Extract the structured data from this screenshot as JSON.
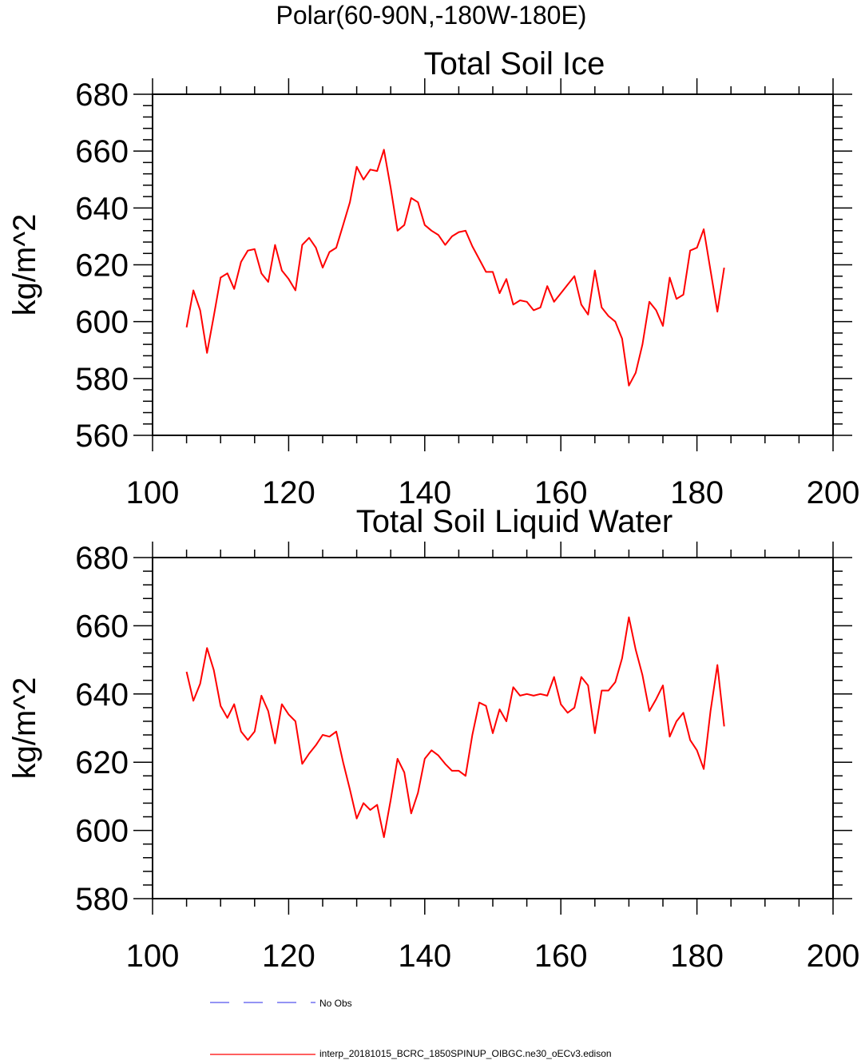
{
  "page_title": "Polar(60-90N,-180W-180E)",
  "legend": {
    "items": [
      {
        "label": "No Obs",
        "color": "#5555ee",
        "style": "dashed"
      },
      {
        "label": "interp_20181015_BCRC_1850SPINUP_OIBGC.ne30_oECv3.edison",
        "color": "#ff0000",
        "style": "solid"
      }
    ]
  },
  "chart_data": [
    {
      "type": "line",
      "title": "Total Soil Ice",
      "xlabel": "",
      "ylabel": "kg/m^2",
      "xlim": [
        100,
        200
      ],
      "ylim": [
        560,
        680
      ],
      "x_ticks": [
        100,
        120,
        140,
        160,
        180,
        200
      ],
      "y_ticks": [
        560,
        580,
        600,
        620,
        640,
        660,
        680
      ],
      "grid": false,
      "series": [
        {
          "color": "#ff0000",
          "x": [
            105,
            106,
            107,
            108,
            109,
            110,
            111,
            112,
            113,
            114,
            115,
            116,
            117,
            118,
            119,
            120,
            121,
            122,
            123,
            124,
            125,
            126,
            127,
            128,
            129,
            130,
            131,
            132,
            133,
            134,
            135,
            136,
            137,
            138,
            139,
            140,
            141,
            142,
            143,
            144,
            145,
            146,
            147,
            148,
            149,
            150,
            151,
            152,
            153,
            154,
            155,
            156,
            157,
            158,
            159,
            160,
            161,
            162,
            163,
            164,
            165,
            166,
            167,
            168,
            169,
            170,
            171,
            172,
            173,
            174,
            175,
            176,
            177,
            178,
            179,
            180,
            181,
            182,
            183,
            184
          ],
          "y": [
            598,
            611,
            604,
            589,
            602,
            615.5,
            617,
            611.5,
            621,
            625,
            625.5,
            617,
            614,
            627,
            618,
            615,
            611,
            627,
            629.5,
            626,
            619,
            624.5,
            626,
            634,
            642,
            654.5,
            650,
            653.5,
            653,
            660.5,
            647,
            632,
            634,
            643.5,
            642,
            634,
            632,
            630.5,
            627,
            630,
            631.5,
            632,
            626.5,
            622,
            617.5,
            617.5,
            610,
            615,
            606,
            607.5,
            607,
            604,
            605,
            612.5,
            607,
            610,
            613,
            616,
            606,
            602.5,
            618,
            605,
            602,
            600,
            594,
            577.5,
            582,
            592,
            607,
            604,
            598.5,
            615.5,
            608,
            609.5,
            625,
            626,
            632.5,
            618,
            603.5,
            619
          ]
        }
      ]
    },
    {
      "type": "line",
      "title": "Total Soil Liquid Water",
      "xlabel": "",
      "ylabel": "kg/m^2",
      "xlim": [
        100,
        200
      ],
      "ylim": [
        580,
        680
      ],
      "x_ticks": [
        100,
        120,
        140,
        160,
        180,
        200
      ],
      "y_ticks": [
        580,
        600,
        620,
        640,
        660,
        680
      ],
      "grid": false,
      "series": [
        {
          "color": "#ff0000",
          "x": [
            105,
            106,
            107,
            108,
            109,
            110,
            111,
            112,
            113,
            114,
            115,
            116,
            117,
            118,
            119,
            120,
            121,
            122,
            123,
            124,
            125,
            126,
            127,
            128,
            129,
            130,
            131,
            132,
            133,
            134,
            135,
            136,
            137,
            138,
            139,
            140,
            141,
            142,
            143,
            144,
            145,
            146,
            147,
            148,
            149,
            150,
            151,
            152,
            153,
            154,
            155,
            156,
            157,
            158,
            159,
            160,
            161,
            162,
            163,
            164,
            165,
            166,
            167,
            168,
            169,
            170,
            171,
            172,
            173,
            174,
            175,
            176,
            177,
            178,
            179,
            180,
            181,
            182,
            183,
            184
          ],
          "y": [
            646.5,
            638,
            643,
            653.5,
            647,
            636.5,
            633,
            637,
            629,
            626.5,
            629,
            639.5,
            635,
            625.5,
            637,
            634,
            632,
            619.5,
            622.5,
            625,
            628,
            627.5,
            629,
            620,
            612,
            603.5,
            608,
            606,
            607.5,
            598,
            609,
            621,
            617,
            605,
            611,
            621,
            623.5,
            622,
            619.5,
            617.5,
            617.5,
            616,
            628,
            637.5,
            636.5,
            628.5,
            635.5,
            632,
            642,
            639.5,
            640,
            639.5,
            640,
            639.5,
            645,
            637,
            634.5,
            636,
            645,
            642.5,
            628.5,
            641,
            641,
            643.5,
            650.5,
            662.5,
            653,
            645.5,
            635,
            638.5,
            642.5,
            627.5,
            632,
            634.5,
            626.5,
            623.5,
            618,
            635,
            648.5,
            630.5
          ]
        }
      ]
    }
  ]
}
